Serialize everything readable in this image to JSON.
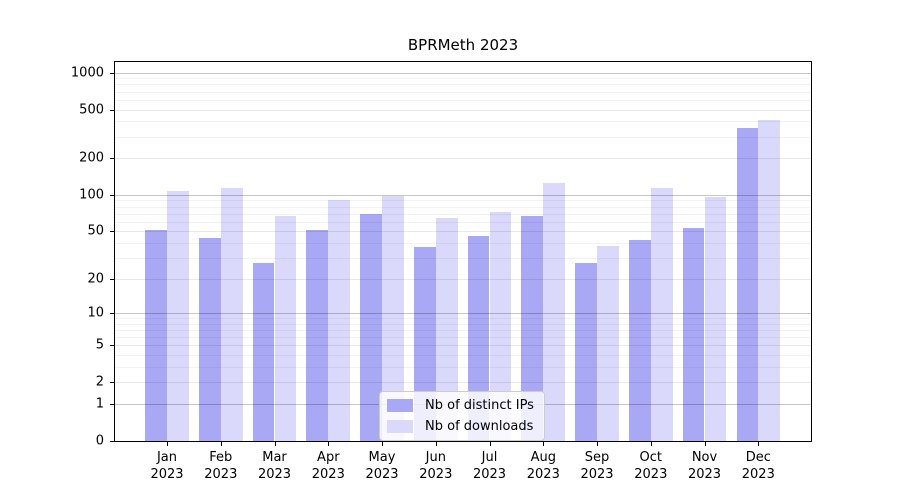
{
  "chart_data": {
    "type": "bar",
    "title": "BPRMeth 2023",
    "categories": [
      "Jan",
      "Feb",
      "Mar",
      "Apr",
      "May",
      "Jun",
      "Jul",
      "Aug",
      "Sep",
      "Oct",
      "Nov",
      "Dec"
    ],
    "x_tick_year": "2023",
    "series": [
      {
        "name": "Nb of distinct IPs",
        "color": "#a9a8f5",
        "values": [
          51,
          44,
          27,
          51,
          69,
          37,
          46,
          67,
          27,
          42,
          53,
          353
        ]
      },
      {
        "name": "Nb of downloads",
        "color": "#dad9fb",
        "values": [
          108,
          115,
          67,
          91,
          98,
          65,
          72,
          125,
          38,
          113,
          96,
          412
        ]
      }
    ],
    "yscale": "log1p",
    "yticks": [
      0,
      1,
      2,
      5,
      10,
      20,
      50,
      100,
      200,
      500,
      1000
    ],
    "yticks_minor": [
      3,
      4,
      6,
      7,
      8,
      9,
      30,
      40,
      60,
      70,
      80,
      90,
      300,
      400,
      600,
      700,
      800,
      900
    ],
    "ylim": [
      0,
      1200
    ],
    "grid": true,
    "legend_position": "lower-center-inside"
  }
}
